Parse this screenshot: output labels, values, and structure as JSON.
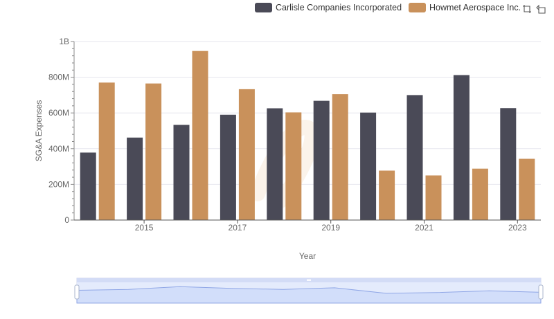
{
  "legend": {
    "series_a": "Carlisle Companies Incorporated",
    "series_b": "Howmet Aerospace Inc."
  },
  "colors": {
    "series_a": "#4a4a57",
    "series_b": "#c9915b",
    "grid": "#e6e6ee",
    "slider_fill": "#d9e3fb",
    "slider_line": "#8fa6e6"
  },
  "icons": [
    "zoom-icon",
    "restore-icon"
  ],
  "chart_data": {
    "type": "bar",
    "xlabel": "Year",
    "ylabel": "SG&A Expenses",
    "ylim": [
      0,
      1000000000
    ],
    "y_ticks": [
      "0",
      "200M",
      "400M",
      "600M",
      "800M",
      "1B"
    ],
    "x_ticks": [
      "2015",
      "2017",
      "2019",
      "2021",
      "2023"
    ],
    "categories": [
      "2014",
      "2015",
      "2016",
      "2017",
      "2018",
      "2019",
      "2020",
      "2021",
      "2022",
      "2023"
    ],
    "series": [
      {
        "name": "Carlisle Companies Incorporated",
        "values": [
          378000000,
          462000000,
          533000000,
          590000000,
          626000000,
          668000000,
          602000000,
          700000000,
          812000000,
          627000000
        ]
      },
      {
        "name": "Howmet Aerospace Inc.",
        "values": [
          770000000,
          765000000,
          947000000,
          733000000,
          603000000,
          705000000,
          277000000,
          250000000,
          288000000,
          343000000
        ]
      }
    ],
    "grid": true,
    "legend_position": "top-right"
  }
}
